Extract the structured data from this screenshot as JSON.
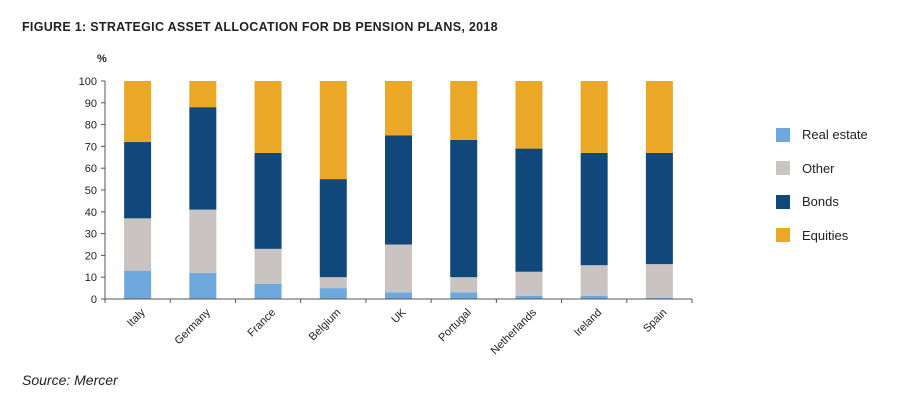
{
  "figure": {
    "title": "FIGURE 1: STRATEGIC ASSET ALLOCATION FOR DB PENSION PLANS, 2018",
    "source": "Source: Mercer"
  },
  "chart_data": {
    "type": "bar",
    "stacked": true,
    "title": "FIGURE 1: STRATEGIC ASSET ALLOCATION FOR DB PENSION PLANS, 2018",
    "xlabel": "",
    "ylabel": "%",
    "ylim": [
      0,
      100
    ],
    "yticks": [
      0,
      10,
      20,
      30,
      40,
      50,
      60,
      70,
      80,
      90,
      100
    ],
    "grid": false,
    "legend_position": "right",
    "categories": [
      "Italy",
      "Germany",
      "France",
      "Belgium",
      "UK",
      "Portugal",
      "Netherlands",
      "Ireland",
      "Spain"
    ],
    "series": [
      {
        "name": "Real estate",
        "color": "#6fa8dc",
        "values": [
          13,
          12,
          7,
          5,
          3,
          3,
          1.5,
          1.5,
          0.5
        ]
      },
      {
        "name": "Other",
        "color": "#c9c4c2",
        "values": [
          24,
          29,
          16,
          5,
          22,
          7,
          11,
          14,
          15.5
        ]
      },
      {
        "name": "Bonds",
        "color": "#11487c",
        "values": [
          35,
          47,
          44,
          45,
          50,
          63,
          56.5,
          51.5,
          51
        ]
      },
      {
        "name": "Equities",
        "color": "#eaa826",
        "values": [
          28,
          12,
          33,
          45,
          25,
          27,
          31,
          33,
          33
        ]
      }
    ],
    "legend_order": [
      "Real estate",
      "Other",
      "Bonds",
      "Equities"
    ]
  }
}
